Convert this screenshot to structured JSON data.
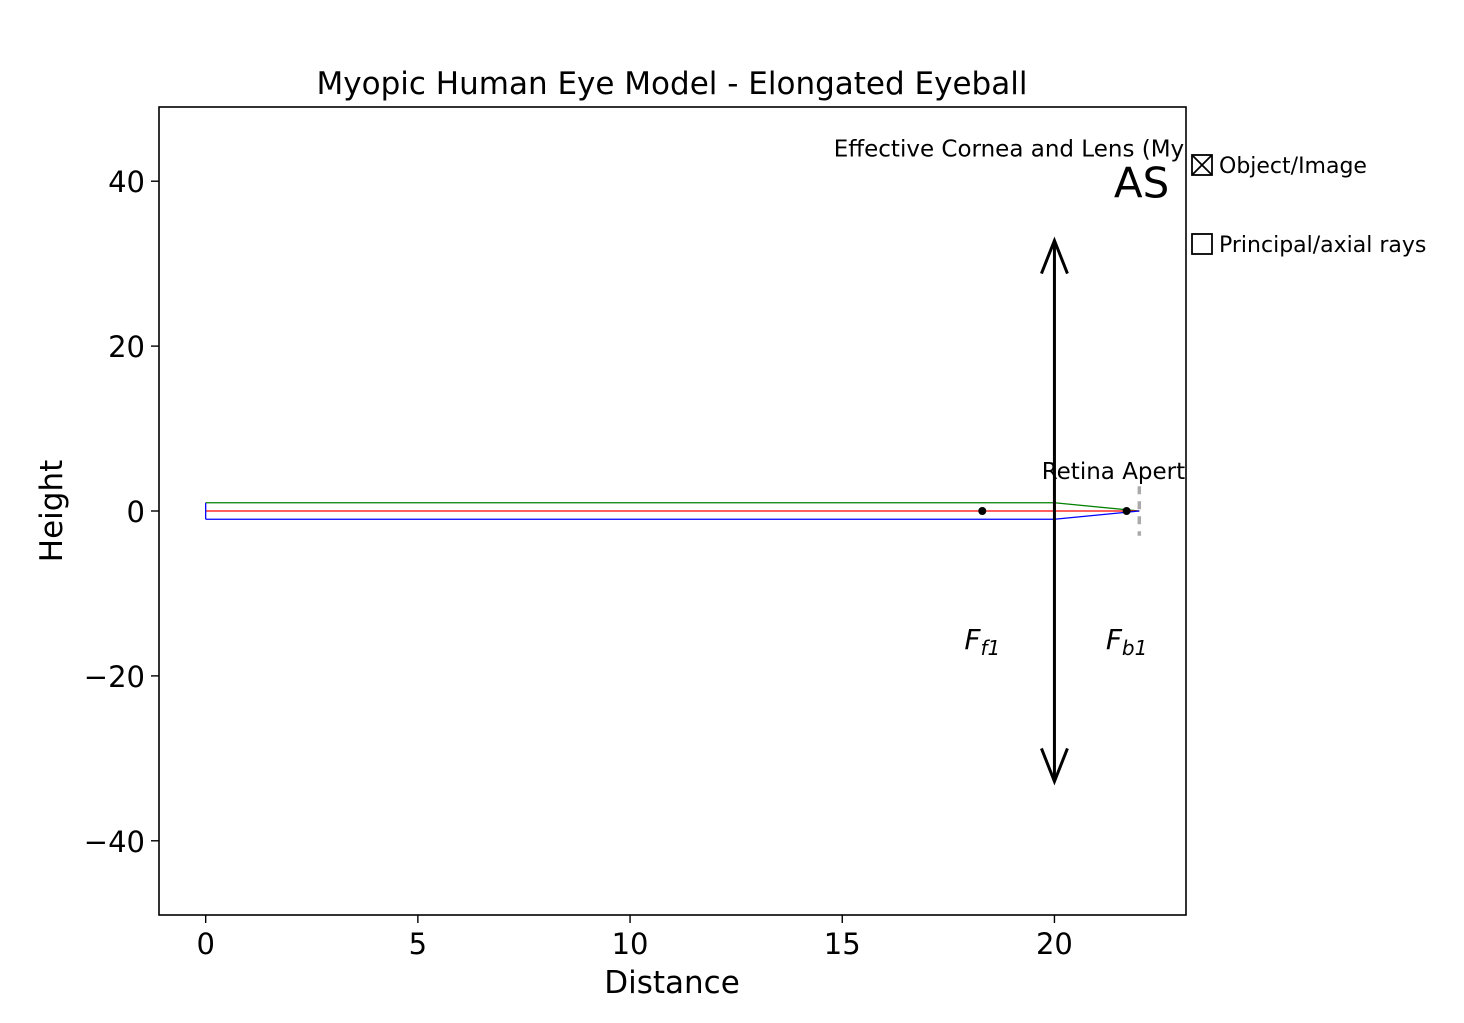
{
  "chart_data": {
    "type": "line",
    "title": "Myopic Human Eye Model - Elongated Eyeball",
    "xlabel": "Distance",
    "ylabel": "Height",
    "xlim": [
      -1.1,
      23.1
    ],
    "ylim": [
      -49,
      49
    ],
    "xticks": [
      0,
      5,
      10,
      15,
      20
    ],
    "yticks": [
      40,
      20,
      0,
      -20,
      -40
    ],
    "grid": false,
    "series": [
      {
        "color": "#008000",
        "x": [
          0,
          20,
          22
        ],
        "y": [
          1,
          1,
          0
        ]
      },
      {
        "color": "#ff0000",
        "x": [
          0,
          22
        ],
        "y": [
          0,
          0
        ]
      },
      {
        "color": "#0000ff",
        "x": [
          0,
          20,
          22
        ],
        "y": [
          -1,
          -1,
          0
        ]
      }
    ],
    "lens": {
      "x": 20,
      "y_top": 32.8,
      "y_bottom": -32.8
    },
    "aperture": {
      "x": 22,
      "y_top": 3,
      "y_bottom": -3,
      "color": "#aaaaaa"
    },
    "object_marker": {
      "x": 0,
      "y_top": 1,
      "y_bottom": -1
    },
    "focal_points": [
      {
        "x": 18.3,
        "y": 0,
        "label": "F",
        "sub": "f1",
        "label_y": -15.5
      },
      {
        "x": 21.7,
        "y": 0,
        "label": "F",
        "sub": "b1",
        "label_y": -15.5
      }
    ],
    "annotations": [
      {
        "text": "Effective Cornea and Lens (Myopic)",
        "x": 14.8,
        "y": 43
      },
      {
        "text": "AS",
        "x": 21.4,
        "y": 38
      },
      {
        "text": "Retina Aperture",
        "x": 19.7,
        "y": 3.9
      }
    ],
    "legend": {
      "placement": "outside-right",
      "items": [
        {
          "label": "Object/Image",
          "checked": true
        },
        {
          "label": "Principal/axial rays",
          "checked": false
        }
      ]
    }
  }
}
